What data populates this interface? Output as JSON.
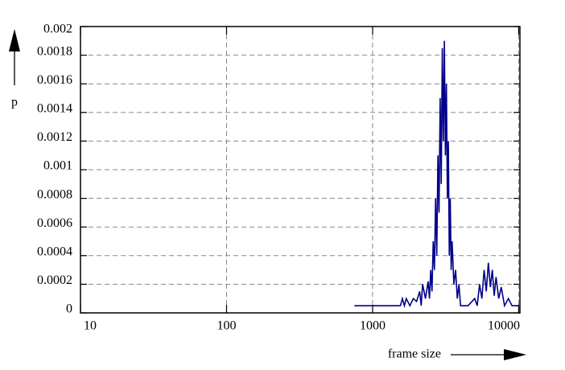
{
  "chart_data": {
    "type": "line",
    "x_label": "frame size",
    "y_label": "p",
    "x_log": true,
    "grid": true,
    "xlim": [
      10,
      10200
    ],
    "xticks": [
      10,
      100,
      1000,
      10000
    ],
    "ylim": [
      0,
      0.002
    ],
    "yticks": [
      0,
      0.0002,
      0.0004,
      0.0006,
      0.0008,
      0.001,
      0.0012,
      0.0014,
      0.0016,
      0.0018,
      0.002
    ],
    "series": [
      {
        "color": "#00008b",
        "x": [
          750,
          1200,
          1550,
          1600,
          1650,
          1700,
          1800,
          1900,
          2000,
          2100,
          2150,
          2200,
          2300,
          2400,
          2450,
          2500,
          2550,
          2600,
          2650,
          2700,
          2750,
          2800,
          2850,
          2900,
          2950,
          3000,
          3050,
          3100,
          3150,
          3200,
          3250,
          3300,
          3350,
          3400,
          3450,
          3500,
          3600,
          3700,
          3800,
          3900,
          4000,
          4500,
          5000,
          5200,
          5400,
          5600,
          5800,
          6000,
          6200,
          6400,
          6600,
          6800,
          7000,
          7300,
          7600,
          8000,
          8500,
          9000,
          10000
        ],
        "values": [
          5e-05,
          5e-05,
          5e-05,
          0.0001,
          5e-05,
          0.0001,
          5e-05,
          0.0001,
          8e-05,
          0.00015,
          5e-05,
          0.0002,
          0.0001,
          0.00022,
          0.0001,
          0.0003,
          0.00015,
          0.0005,
          0.0003,
          0.0008,
          0.0004,
          0.0011,
          0.0007,
          0.0015,
          0.0009,
          0.00185,
          0.0012,
          0.0019,
          0.0011,
          0.0016,
          0.0008,
          0.0012,
          0.0004,
          0.0008,
          0.0003,
          0.0005,
          0.0002,
          0.0003,
          0.0001,
          0.0002,
          5e-05,
          5e-05,
          0.0001,
          5e-05,
          0.0002,
          0.0001,
          0.0003,
          0.00015,
          0.00035,
          0.00018,
          0.0003,
          0.00012,
          0.00025,
          0.0001,
          0.00018,
          5e-05,
          0.0001,
          5e-05,
          5e-05
        ]
      }
    ]
  }
}
